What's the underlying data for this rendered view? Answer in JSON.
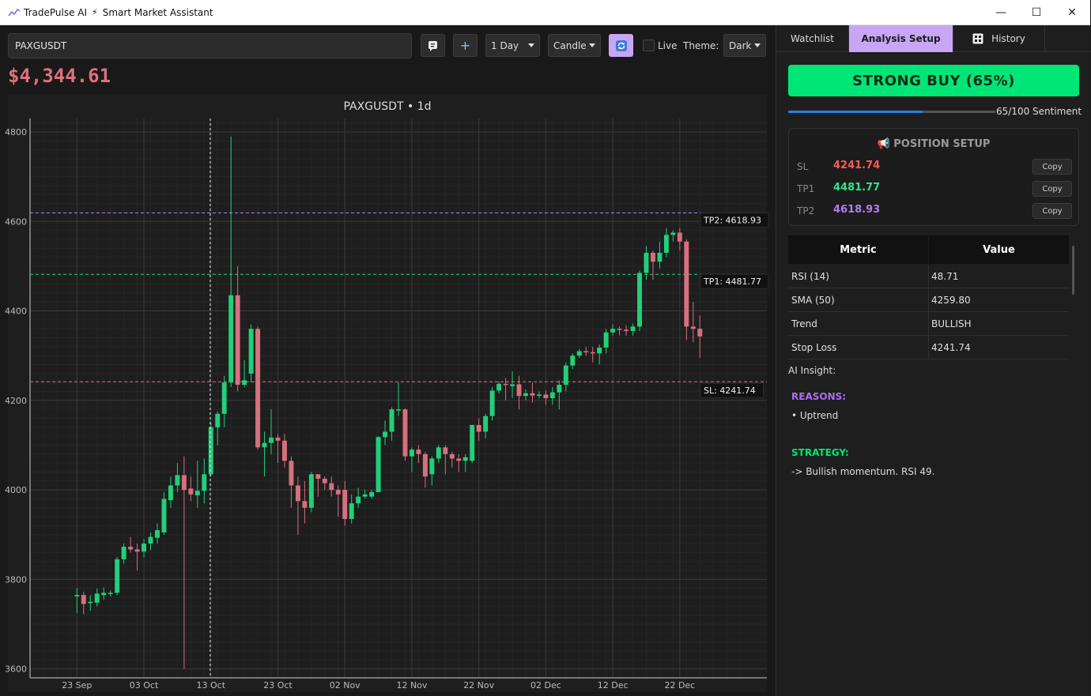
{
  "window": {
    "app_name": "TradePulse AI",
    "subtitle": "Smart Market Assistant",
    "minimize": "—",
    "maximize": "☐",
    "close": "✕"
  },
  "toolbar": {
    "symbol": "PAXGUSDT",
    "add_label": "+",
    "interval": "1 Day",
    "chart_style": "Candle",
    "live_label": "Live",
    "theme_label": "Theme:",
    "theme_value": "Dark"
  },
  "price": "$4,344.61",
  "colors": {
    "bull": "#21d07a",
    "bear": "#d6707f",
    "tp2": "#b07ff0",
    "tp1": "#21d07a",
    "sl": "#e0707e",
    "accent": "#c9a6f5"
  },
  "icons": {
    "app": "line-chart-icon",
    "bolt": "bolt-icon",
    "chat": "chat-icon",
    "refresh": "refresh-icon",
    "history": "history-icon",
    "megaphone": "megaphone-icon"
  },
  "chart_data": {
    "type": "candlestick",
    "title": "PAXGUSDT • 1d",
    "ylim": [
      3580,
      4830
    ],
    "yticks": [
      3600,
      3800,
      4000,
      4200,
      4400,
      4600,
      4800
    ],
    "xticks": [
      {
        "label": "23 Sep",
        "day": 0
      },
      {
        "label": "03 Oct",
        "day": 10
      },
      {
        "label": "13 Oct",
        "day": 20
      },
      {
        "label": "23 Oct",
        "day": 30
      },
      {
        "label": "02 Nov",
        "day": 40
      },
      {
        "label": "12 Nov",
        "day": 50
      },
      {
        "label": "22 Nov",
        "day": 60
      },
      {
        "label": "02 Dec",
        "day": 70
      },
      {
        "label": "12 Dec",
        "day": 80
      },
      {
        "label": "22 Dec",
        "day": 90
      }
    ],
    "xlim": [
      -7,
      103
    ],
    "crosshair_day": 19.9,
    "levels": [
      {
        "label": "TP2: 4618.93",
        "value": 4618.93,
        "color": "#b07ff0"
      },
      {
        "label": "TP1: 4481.77",
        "value": 4481.77,
        "color": "#21d07a"
      },
      {
        "label": "SL: 4241.74",
        "value": 4241.74,
        "color": "#e0707e"
      }
    ],
    "candles": [
      [
        3762,
        3765,
        3725,
        3780
      ],
      [
        3765,
        3745,
        3722,
        3772
      ],
      [
        3747,
        3750,
        3730,
        3765
      ],
      [
        3748,
        3768,
        3740,
        3780
      ],
      [
        3765,
        3770,
        3755,
        3782
      ],
      [
        3768,
        3770,
        3762,
        3775
      ],
      [
        3770,
        3845,
        3765,
        3850
      ],
      [
        3845,
        3873,
        3835,
        3880
      ],
      [
        3873,
        3867,
        3860,
        3895
      ],
      [
        3867,
        3862,
        3820,
        3880
      ],
      [
        3862,
        3880,
        3850,
        3890
      ],
      [
        3880,
        3895,
        3865,
        3905
      ],
      [
        3893,
        3910,
        3880,
        3925
      ],
      [
        3905,
        3980,
        3900,
        3995
      ],
      [
        3977,
        4010,
        3960,
        4030
      ],
      [
        4010,
        4033,
        3995,
        4060
      ],
      [
        4033,
        4000,
        3600,
        4075
      ],
      [
        4003,
        3990,
        3975,
        4030
      ],
      [
        3988,
        3998,
        3960,
        4065
      ],
      [
        3998,
        4035,
        3970,
        4070
      ],
      [
        4035,
        4140,
        4030,
        4150
      ],
      [
        4140,
        4170,
        4100,
        4175
      ],
      [
        4170,
        4240,
        4140,
        4255
      ],
      [
        4240,
        4435,
        4230,
        4790
      ],
      [
        4435,
        4235,
        4220,
        4500
      ],
      [
        4235,
        4245,
        4230,
        4290
      ],
      [
        4260,
        4360,
        4240,
        4370
      ],
      [
        4360,
        4095,
        4090,
        4365
      ],
      [
        4095,
        4105,
        4030,
        4130
      ],
      [
        4105,
        4117,
        4080,
        4180
      ],
      [
        4117,
        4110,
        4060,
        4125
      ],
      [
        4110,
        4065,
        4050,
        4125
      ],
      [
        4065,
        4010,
        3960,
        4075
      ],
      [
        4010,
        3975,
        3900,
        4030
      ],
      [
        3975,
        3960,
        3925,
        4020
      ],
      [
        3960,
        4035,
        3950,
        4040
      ],
      [
        4035,
        4025,
        3985,
        4030
      ],
      [
        4025,
        4015,
        4000,
        4030
      ],
      [
        4015,
        4000,
        3985,
        4030
      ],
      [
        4000,
        3990,
        3940,
        4010
      ],
      [
        4000,
        3935,
        3920,
        4020
      ],
      [
        3935,
        3970,
        3925,
        3990
      ],
      [
        3970,
        3985,
        3960,
        4005
      ],
      [
        3985,
        3990,
        3980,
        4000
      ],
      [
        3985,
        3995,
        3980,
        4000
      ],
      [
        3995,
        4118,
        3995,
        4120
      ],
      [
        4118,
        4130,
        4100,
        4155
      ],
      [
        4130,
        4180,
        4110,
        4185
      ],
      [
        4180,
        4180,
        4165,
        4240
      ],
      [
        4180,
        4075,
        4065,
        4182
      ],
      [
        4075,
        4090,
        4040,
        4095
      ],
      [
        4090,
        4080,
        4060,
        4100
      ],
      [
        4080,
        4030,
        4005,
        4085
      ],
      [
        4035,
        4070,
        4010,
        4075
      ],
      [
        4070,
        4095,
        4060,
        4100
      ],
      [
        4095,
        4080,
        4035,
        4100
      ],
      [
        4080,
        4070,
        4050,
        4085
      ],
      [
        4070,
        4065,
        4040,
        4080
      ],
      [
        4065,
        4073,
        4040,
        4080
      ],
      [
        4065,
        4145,
        4060,
        4145
      ],
      [
        4145,
        4130,
        4110,
        4160
      ],
      [
        4130,
        4165,
        4115,
        4170
      ],
      [
        4165,
        4222,
        4155,
        4230
      ],
      [
        4222,
        4237,
        4215,
        4242
      ],
      [
        4237,
        4235,
        4200,
        4250
      ],
      [
        4232,
        4236,
        4205,
        4265
      ],
      [
        4236,
        4210,
        4180,
        4255
      ],
      [
        4210,
        4216,
        4200,
        4225
      ],
      [
        4216,
        4211,
        4195,
        4240
      ],
      [
        4211,
        4213,
        4205,
        4220
      ],
      [
        4213,
        4205,
        4190,
        4222
      ],
      [
        4205,
        4218,
        4190,
        4230
      ],
      [
        4218,
        4235,
        4180,
        4245
      ],
      [
        4235,
        4278,
        4220,
        4285
      ],
      [
        4278,
        4300,
        4270,
        4305
      ],
      [
        4300,
        4310,
        4295,
        4315
      ],
      [
        4310,
        4308,
        4300,
        4320
      ],
      [
        4308,
        4305,
        4285,
        4320
      ],
      [
        4305,
        4318,
        4280,
        4325
      ],
      [
        4318,
        4352,
        4305,
        4360
      ],
      [
        4352,
        4360,
        4345,
        4370
      ],
      [
        4360,
        4358,
        4345,
        4365
      ],
      [
        4358,
        4355,
        4345,
        4368
      ],
      [
        4355,
        4365,
        4345,
        4372
      ],
      [
        4365,
        4485,
        4355,
        4490
      ],
      [
        4485,
        4530,
        4470,
        4545
      ],
      [
        4530,
        4510,
        4470,
        4535
      ],
      [
        4510,
        4530,
        4495,
        4555
      ],
      [
        4530,
        4570,
        4520,
        4585
      ],
      [
        4570,
        4575,
        4555,
        4580
      ],
      [
        4575,
        4555,
        4535,
        4585
      ],
      [
        4555,
        4365,
        4335,
        4560
      ],
      [
        4365,
        4360,
        4330,
        4420
      ],
      [
        4360,
        4343,
        4295,
        4390
      ]
    ]
  },
  "tabs": [
    {
      "label": "Watchlist"
    },
    {
      "label": "Analysis Setup"
    },
    {
      "label": "History"
    }
  ],
  "signal": "STRONG BUY (65%)",
  "sentiment": {
    "value": 65,
    "label": "65/100 Sentiment"
  },
  "position": {
    "title": "POSITION SETUP",
    "rows": [
      {
        "key": "SL",
        "value": "4241.74",
        "color": "#ff5a5a",
        "copy": "Copy"
      },
      {
        "key": "TP1",
        "value": "4481.77",
        "color": "#2ee58a",
        "copy": "Copy"
      },
      {
        "key": "TP2",
        "value": "4618.93",
        "color": "#b47cf2",
        "copy": "Copy"
      }
    ]
  },
  "metrics": {
    "headers": [
      "Metric",
      "Value"
    ],
    "rows": [
      [
        "RSI (14)",
        "48.71"
      ],
      [
        "SMA (50)",
        "4259.80"
      ],
      [
        "Trend",
        "BULLISH"
      ],
      [
        "Stop Loss",
        "4241.74"
      ]
    ]
  },
  "insight": {
    "label": "AI Insight:",
    "reasons_title": "REASONS:",
    "reasons": [
      "• Uptrend"
    ],
    "strategy_title": "STRATEGY:",
    "strategy": [
      "-> Bullish momentum. RSI 49."
    ]
  }
}
